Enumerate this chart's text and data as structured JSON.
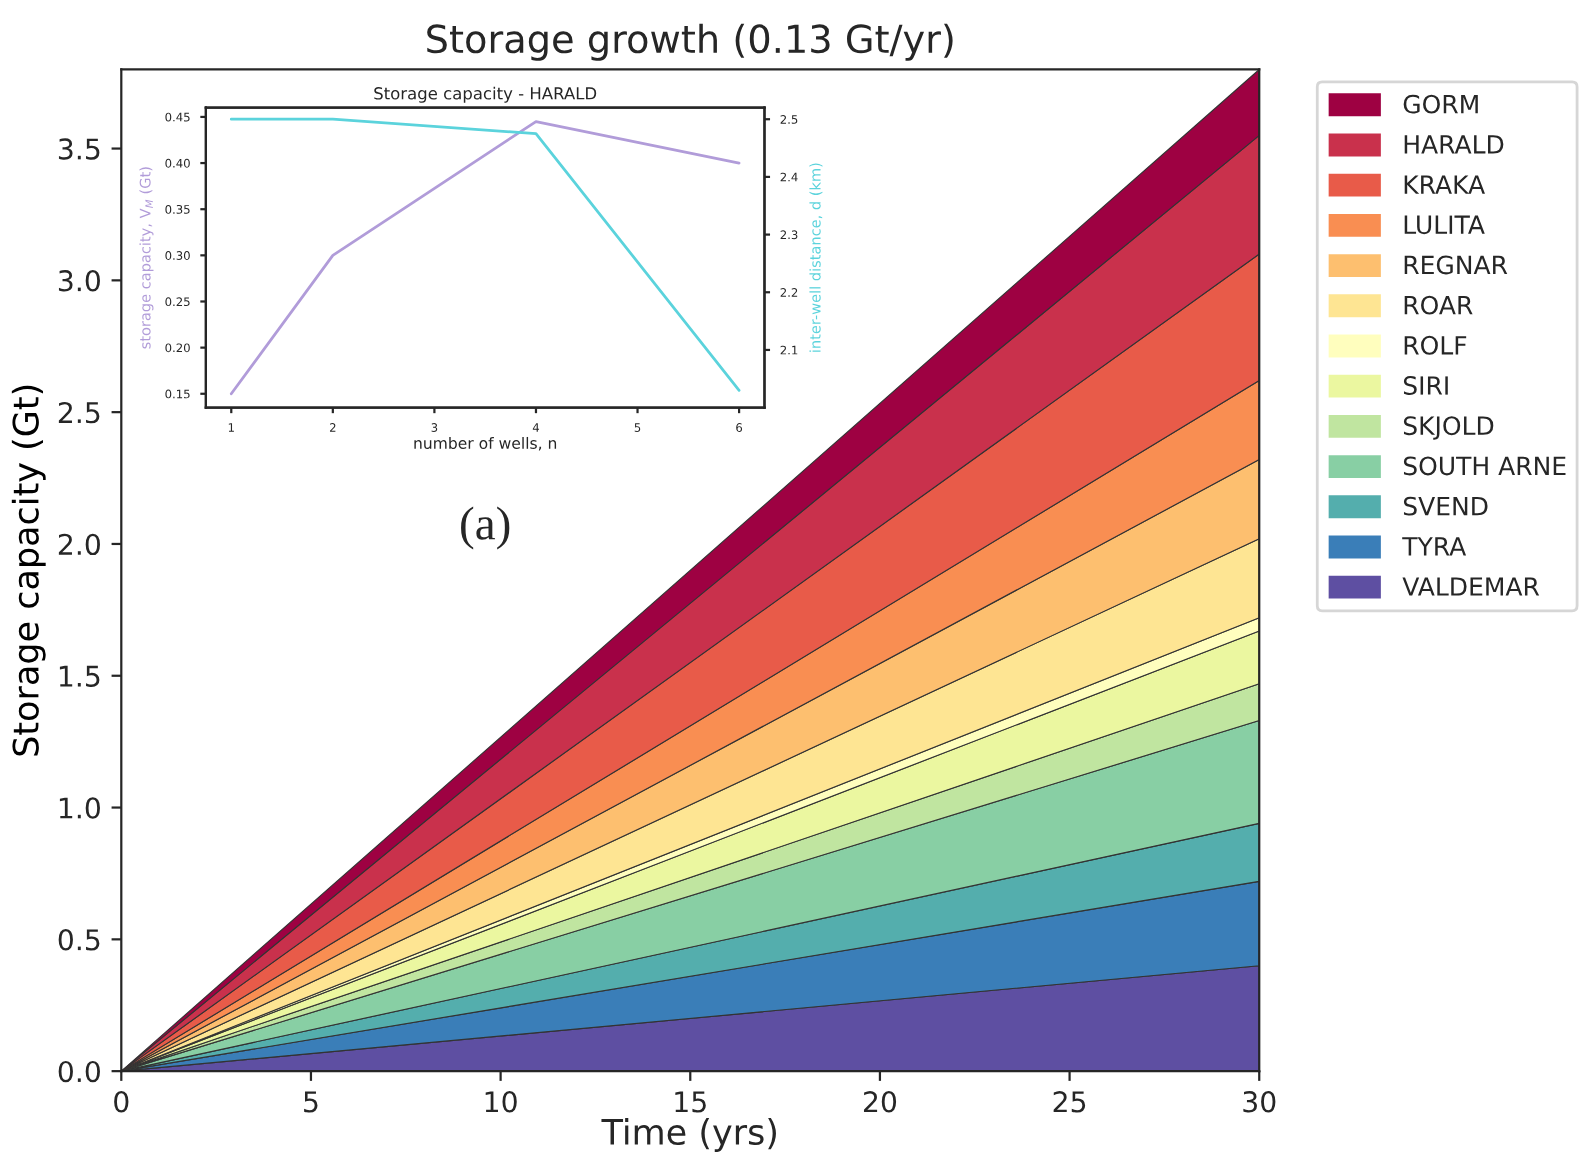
{
  "chart_data": [
    {
      "type": "area",
      "stacked": true,
      "title": "Storage growth (0.13 Gt/yr)",
      "xlabel": "Time (yrs)",
      "ylabel": "Storage capacity (Gt)",
      "x": [
        0,
        30
      ],
      "series": [
        {
          "name": "VALDEMAR",
          "color": "#5e4fa2",
          "values": [
            0,
            0.4
          ]
        },
        {
          "name": "TYRA",
          "color": "#3a7eb8",
          "values": [
            0,
            0.32
          ]
        },
        {
          "name": "SVEND",
          "color": "#54aead",
          "values": [
            0,
            0.22
          ]
        },
        {
          "name": "SOUTH ARNE",
          "color": "#88cfa4",
          "values": [
            0,
            0.39
          ]
        },
        {
          "name": "SKJOLD",
          "color": "#c0e5a0",
          "values": [
            0,
            0.14
          ]
        },
        {
          "name": "SIRI",
          "color": "#ebf7a0",
          "values": [
            0,
            0.2
          ]
        },
        {
          "name": "ROLF",
          "color": "#fffebe",
          "values": [
            0,
            0.05
          ]
        },
        {
          "name": "ROAR",
          "color": "#fee593",
          "values": [
            0,
            0.3
          ]
        },
        {
          "name": "REGNAR",
          "color": "#fdbf6f",
          "values": [
            0,
            0.3
          ]
        },
        {
          "name": "LULITA",
          "color": "#f98e52",
          "values": [
            0,
            0.3
          ]
        },
        {
          "name": "KRAKA",
          "color": "#e85b49",
          "values": [
            0,
            0.48
          ]
        },
        {
          "name": "HARALD",
          "color": "#c9314c",
          "values": [
            0,
            0.45
          ]
        },
        {
          "name": "GORM",
          "color": "#9e0142",
          "values": [
            0,
            0.25
          ]
        }
      ],
      "xlim": [
        0,
        30
      ],
      "ylim": [
        0,
        3.8
      ],
      "xticks": [
        0,
        5,
        10,
        15,
        20,
        25,
        30
      ],
      "yticks": [
        {
          "value": 0,
          "label": "0.0"
        },
        0.5,
        {
          "value": 1,
          "label": "1.0"
        },
        1.5,
        {
          "value": 2,
          "label": "2.0"
        },
        2.5,
        {
          "value": 3,
          "label": "3.0"
        },
        3.5
      ],
      "legend": "right",
      "grid": false
    },
    {
      "type": "line",
      "title": "Storage capacity - HARALD",
      "xlabel": "number of wells, n",
      "ylabel": "storage capacity, V$_{M}$ (Gt)",
      "y2label": "inter-well distance, d (km)",
      "series": [
        {
          "color": "#b19cd9",
          "x": [
            1,
            2,
            4,
            6
          ],
          "values": [
            0.15,
            0.3,
            0.445,
            0.4
          ]
        },
        {
          "color": "#5bd3dc",
          "axis": "y2",
          "x": [
            1,
            2,
            4,
            6
          ],
          "values": [
            2.5,
            2.5,
            2.475,
            2.03
          ]
        }
      ],
      "xlim": [
        0.75,
        6.25
      ],
      "ylim": [
        0.135,
        0.46
      ],
      "y2lim": [
        2.0,
        2.52
      ],
      "xticks": [
        1,
        2,
        3,
        4,
        5,
        6
      ],
      "yticks": [
        0.15,
        {
          "value": 0.2,
          "label": "0.20"
        },
        0.25,
        {
          "value": 0.3,
          "label": "0.30"
        },
        0.35,
        {
          "value": 0.4,
          "label": "0.40"
        },
        0.45
      ],
      "y2ticks": [
        2.1,
        2.2,
        2.3,
        2.4,
        2.5
      ],
      "annotations": [
        "(a)"
      ],
      "legend": false,
      "grid": false
    }
  ]
}
